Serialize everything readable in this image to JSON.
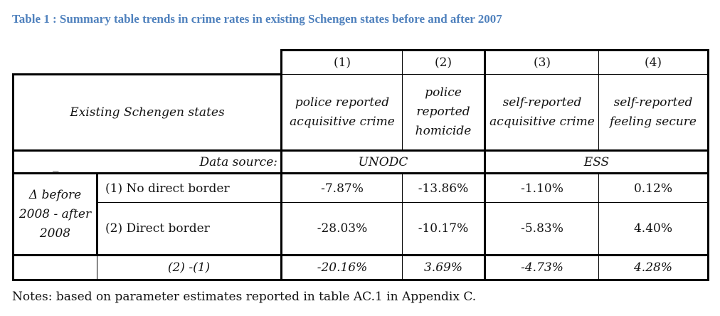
{
  "title": "Table 1 : Summary table trends in crime rates in existing Schengen states before and after 2007",
  "col_numbers": [
    "(1)",
    "(2)",
    "(3)",
    "(4)"
  ],
  "header_left": "Existing Schengen states",
  "col_headers": [
    "police reported acquisitive crime",
    "police reported homicide",
    "self-reported acquisitive crime",
    "self-reported feeling secure"
  ],
  "source_row": {
    "dash": "_",
    "label": "Data source:",
    "unodc": "UNODC",
    "ess": "ESS"
  },
  "group_label": "Δ before 2008 - after 2008",
  "rows": [
    {
      "label": "(1) No direct border",
      "values": [
        "-7.87%",
        "-13.86%",
        "-1.10%",
        "0.12%"
      ]
    },
    {
      "label": "(2) Direct border",
      "values": [
        "-28.03%",
        "-10.17%",
        "-5.83%",
        "4.40%"
      ]
    }
  ],
  "diff_row": {
    "label": "(2) -(1)",
    "values": [
      "-20.16%",
      "3.69%",
      "-4.73%",
      "4.28%"
    ]
  },
  "notes": "Notes: based on parameter estimates reported in table AC.1 in Appendix C."
}
